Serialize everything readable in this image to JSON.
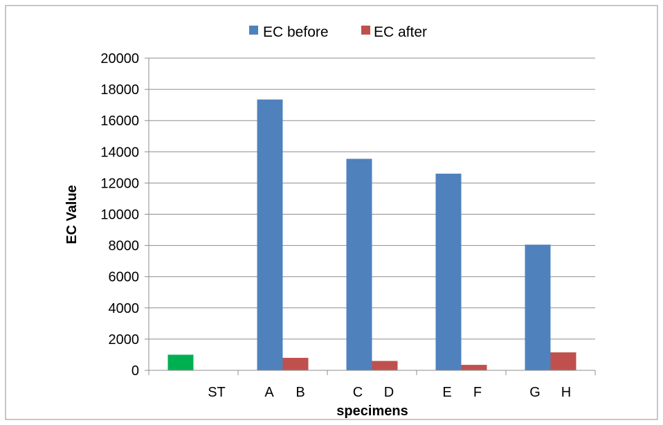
{
  "chart_data": {
    "type": "bar",
    "title": "",
    "xlabel": "specimens",
    "ylabel": "EC Value",
    "ylim": [
      0,
      20000
    ],
    "yticks": [
      "0",
      "2000",
      "4000",
      "6000",
      "8000",
      "10000",
      "12000",
      "14000",
      "16000",
      "18000",
      "20000"
    ],
    "grid": true,
    "legend_position": "top",
    "categories": [
      "ST",
      "A    B",
      "C    D",
      "E    F",
      "G    H"
    ],
    "category_labels": [
      {
        "group": 0,
        "items": [
          "ST"
        ]
      },
      {
        "group": 1,
        "items": [
          "A",
          "B"
        ]
      },
      {
        "group": 2,
        "items": [
          "C",
          "D"
        ]
      },
      {
        "group": 3,
        "items": [
          "E",
          "F"
        ]
      },
      {
        "group": 4,
        "items": [
          "G",
          "H"
        ]
      }
    ],
    "series": [
      {
        "name": "EC before",
        "color": "#4F81BD",
        "values": [
          1000,
          17350,
          13550,
          12600,
          8050
        ]
      },
      {
        "name": "EC after",
        "color": "#C0504D",
        "values": [
          null,
          800,
          600,
          350,
          1150
        ]
      }
    ],
    "special_bar_colors": {
      "ST_before": "#00B050"
    }
  }
}
